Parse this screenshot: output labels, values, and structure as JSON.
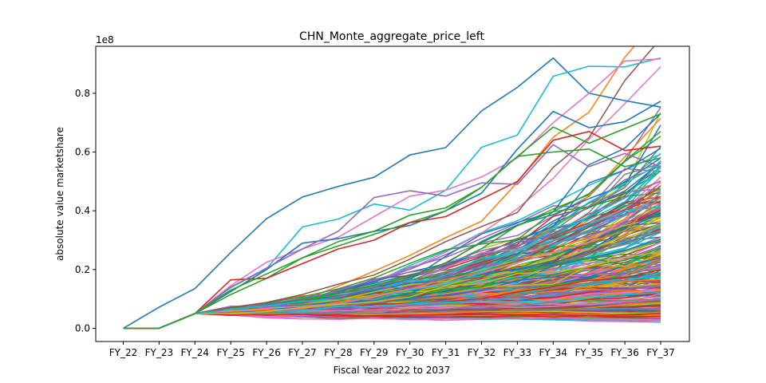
{
  "chart_data": {
    "type": "line",
    "title": "CHN_Monte_aggregate_price_left",
    "xlabel": "Fiscal Year 2022 to 2037",
    "ylabel": "absolute value marketshare",
    "y_offset_text": "1e8",
    "categories": [
      "FY_22",
      "FY_23",
      "FY_24",
      "FY_25",
      "FY_26",
      "FY_27",
      "FY_28",
      "FY_29",
      "FY_30",
      "FY_31",
      "FY_32",
      "FY_33",
      "FY_34",
      "FY_35",
      "FY_36",
      "FY_37"
    ],
    "ylim": [
      -4500000,
      96000000
    ],
    "yticks": [
      0,
      20000000,
      40000000,
      60000000,
      80000000
    ],
    "ytick_labels": [
      "0.0",
      "0.2",
      "0.4",
      "0.6",
      "0.8"
    ],
    "grid": false,
    "legend": "none",
    "colors": [
      "#1f77b4",
      "#ff7f0e",
      "#2ca02c",
      "#d62728",
      "#9467bd",
      "#8c564b",
      "#e377c2",
      "#7f7f7f",
      "#bcbd22",
      "#17becf"
    ],
    "highlighted_series": [
      {
        "color": "#1f77b4",
        "values": [
          0,
          7200000,
          13500000,
          25800000,
          37300000,
          44700000,
          48300000,
          51400000,
          59000000,
          61500000,
          74000000,
          82000000,
          92000000,
          80000000,
          77500000,
          75300000
        ]
      },
      {
        "color": "#17becf",
        "values": [
          0,
          0,
          5000000,
          13800000,
          20300000,
          34500000,
          37200000,
          42300000,
          40200000,
          47000000,
          61600000,
          65800000,
          85800000,
          89200000,
          89000000,
          92000000
        ]
      },
      {
        "color": "#e377c2",
        "values": [
          0,
          0,
          5000000,
          14500000,
          22500000,
          27000000,
          31000000,
          38000000,
          45000000,
          47000000,
          51500000,
          58000000,
          70000000,
          80000000,
          91000000,
          91700000
        ]
      },
      {
        "color": "#1f77b4",
        "values": [
          0,
          0,
          5000000,
          12500000,
          20000000,
          29000000,
          30500000,
          33000000,
          35000000,
          40000000,
          46000000,
          61000000,
          73800000,
          68300000,
          70300000,
          77300000
        ]
      },
      {
        "color": "#2ca02c",
        "values": [
          0,
          0,
          5000000,
          11500000,
          17000000,
          24000000,
          28000000,
          32000000,
          36000000,
          40000000,
          48000000,
          58500000,
          68500000,
          63000000,
          68000000,
          73000000
        ]
      },
      {
        "color": "#d62728",
        "values": [
          0,
          0,
          5000000,
          16500000,
          17000000,
          22000000,
          27000000,
          30000000,
          36000000,
          38000000,
          44000000,
          50000000,
          64000000,
          67000000,
          60500000,
          62000000
        ]
      },
      {
        "color": "#9467bd",
        "values": [
          0,
          0,
          5000000,
          14000000,
          20500000,
          27000000,
          33000000,
          44500000,
          46800000,
          45000000,
          49500000,
          49000000,
          62500000,
          55000000,
          59500000,
          55000000
        ]
      },
      {
        "color": "#2ca02c",
        "values": [
          0,
          0,
          5000000,
          13000000,
          18500000,
          24000000,
          29500000,
          33000000,
          38500000,
          41000000,
          48000000,
          58500000,
          60000000,
          61000000,
          55000000,
          58000000
        ]
      }
    ],
    "simulated_series_count": 300,
    "simulated_initial": [
      0,
      0,
      5000000
    ],
    "simulated_final_range": [
      3500000,
      58000000
    ]
  }
}
